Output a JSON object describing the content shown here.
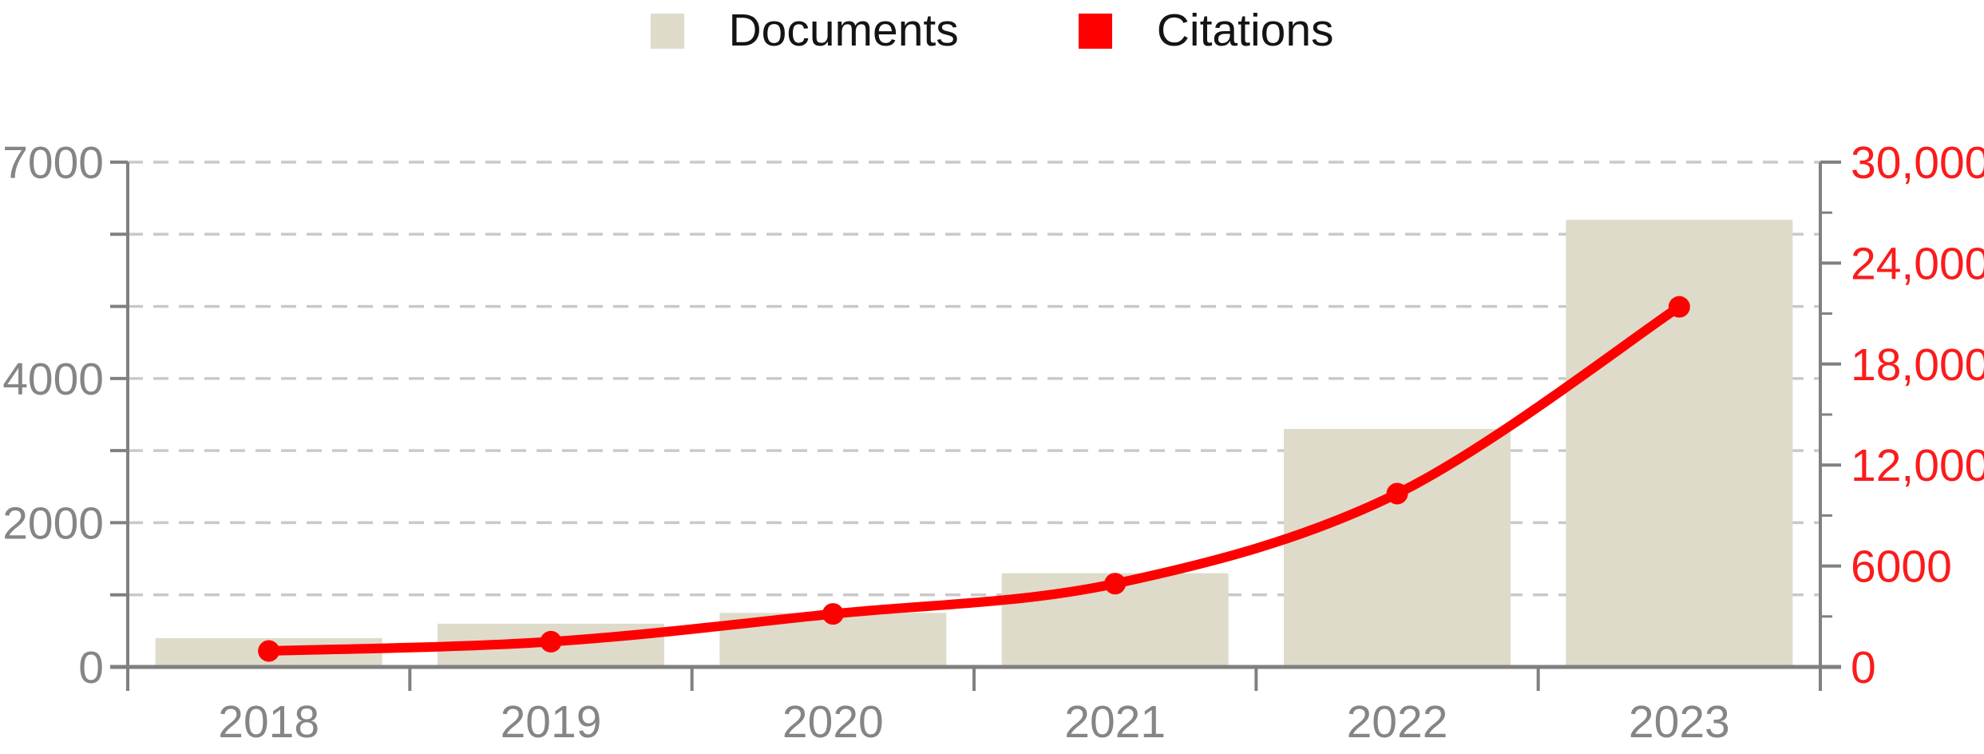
{
  "legend": {
    "items": [
      {
        "label": "Documents",
        "color": "#dfdbca"
      },
      {
        "label": "Citations",
        "color": "#ff0000"
      }
    ]
  },
  "chart_data": {
    "type": "combo-bar-line",
    "title": "",
    "categories": [
      "2018",
      "2019",
      "2020",
      "2021",
      "2022",
      "2023"
    ],
    "series": [
      {
        "name": "Documents",
        "type": "bar",
        "axis": "left",
        "color": "#dfdbca",
        "values": [
          400,
          600,
          750,
          1300,
          3300,
          6200
        ]
      },
      {
        "name": "Citations",
        "type": "line",
        "axis": "right",
        "color": "#ff0000",
        "values": [
          950,
          1500,
          3150,
          4950,
          10300,
          21400
        ]
      }
    ],
    "left_axis": {
      "min": 0,
      "max": 7000,
      "gridline_interval": 1000,
      "tick_labels": [
        {
          "value": 0,
          "label": "0"
        },
        {
          "value": 2000,
          "label": "2000"
        },
        {
          "value": 4000,
          "label": "4000"
        },
        {
          "value": 7000,
          "label": "7000"
        }
      ],
      "text_color": "#858585"
    },
    "right_axis": {
      "min": 0,
      "max": 30000,
      "minor_tick_interval": 3000,
      "tick_labels": [
        {
          "value": 0,
          "label": "0"
        },
        {
          "value": 6000,
          "label": "6000"
        },
        {
          "value": 12000,
          "label": "12,000"
        },
        {
          "value": 18000,
          "label": "18,000"
        },
        {
          "value": 24000,
          "label": "24,000"
        },
        {
          "value": 30000,
          "label": "30,000"
        }
      ],
      "text_color": "#fb1b1b"
    },
    "x_axis": {
      "text_color": "#858585"
    },
    "grid": {
      "style": "dashed",
      "color": "#c9c9c9",
      "legend_position": "top-center"
    }
  },
  "style": {
    "background": "#ffffff",
    "axis_color": "#808080"
  }
}
